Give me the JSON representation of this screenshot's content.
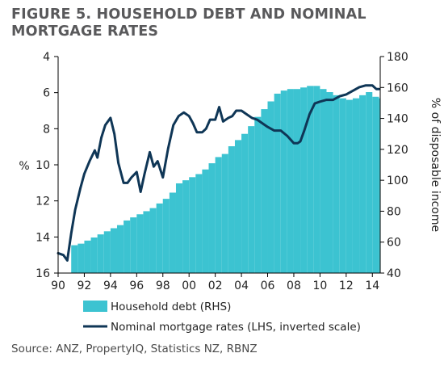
{
  "title": "FIGURE 5. HOUSEHOLD DEBT AND NOMINAL MORTGAGE RATES",
  "source": "Source: ANZ, PropertyIQ, Statistics NZ, RBNZ",
  "colors": {
    "area": "#3cc3d1",
    "line": "#0f3656",
    "axis": "#000000",
    "text": "#222222"
  },
  "chart_data": {
    "type": "area+line",
    "title": "FIGURE 5. HOUSEHOLD DEBT AND NOMINAL MORTGAGE RATES",
    "xlabel": "",
    "x_ticks": [
      90,
      92,
      94,
      96,
      98,
      0,
      2,
      4,
      6,
      8,
      10,
      12,
      14
    ],
    "x_tick_labels": [
      "90",
      "92",
      "94",
      "96",
      "98",
      "00",
      "02",
      "04",
      "06",
      "08",
      "10",
      "12",
      "14"
    ],
    "xlim": [
      1990,
      2014.6
    ],
    "left_axis": {
      "label": "%",
      "ticks": [
        "4",
        "6",
        "8",
        "10",
        "12",
        "14",
        "16"
      ],
      "lim": [
        4,
        16
      ],
      "inverted": true
    },
    "right_axis": {
      "label": "% of disposable income",
      "ticks": [
        "180",
        "160",
        "140",
        "120",
        "100",
        "80",
        "60",
        "40"
      ],
      "lim": [
        40,
        180
      ]
    },
    "legend": {
      "position": "bottom",
      "entries": [
        "Household debt (RHS)",
        "Nominal mortgage rates (LHS, inverted scale)"
      ]
    },
    "series": [
      {
        "name": "Household debt (RHS)",
        "type": "area",
        "axis": "right",
        "x": [
          1991.0,
          1991.5,
          1992.0,
          1992.5,
          1993.0,
          1993.5,
          1994.0,
          1994.5,
          1995.0,
          1995.5,
          1996.0,
          1996.5,
          1997.0,
          1997.5,
          1998.0,
          1998.5,
          1999.0,
          1999.5,
          2000.0,
          2000.5,
          2001.0,
          2001.5,
          2002.0,
          2002.5,
          2003.0,
          2003.5,
          2004.0,
          2004.5,
          2005.0,
          2005.5,
          2006.0,
          2006.5,
          2007.0,
          2007.5,
          2008.0,
          2008.5,
          2009.0,
          2009.5,
          2010.0,
          2010.5,
          2011.0,
          2011.5,
          2012.0,
          2012.5,
          2013.0,
          2013.5,
          2014.0,
          2014.5
        ],
        "values": [
          58,
          59,
          61,
          63,
          65,
          67,
          69,
          71,
          74,
          76,
          78,
          80,
          82,
          85,
          88,
          92,
          98,
          100,
          102,
          104,
          107,
          111,
          115,
          117,
          122,
          126,
          130,
          135,
          141,
          146,
          151,
          156,
          158,
          159,
          159,
          160,
          161,
          161,
          159,
          157,
          155,
          153,
          152,
          153,
          155,
          157,
          154,
          153
        ]
      },
      {
        "name": "Nominal mortgage rates (LHS, inverted scale)",
        "type": "line",
        "axis": "left",
        "x": [
          1990.0,
          1990.4,
          1990.7,
          1991.0,
          1991.3,
          1991.7,
          1992.0,
          1992.4,
          1992.8,
          1993.0,
          1993.3,
          1993.6,
          1994.0,
          1994.3,
          1994.6,
          1995.0,
          1995.3,
          1995.6,
          1996.0,
          1996.3,
          1996.6,
          1997.0,
          1997.3,
          1997.6,
          1998.0,
          1998.4,
          1998.8,
          1999.2,
          1999.6,
          2000.0,
          2000.3,
          2000.6,
          2001.0,
          2001.3,
          2001.6,
          2002.0,
          2002.3,
          2002.6,
          2003.0,
          2003.3,
          2003.6,
          2004.0,
          2004.4,
          2004.8,
          2005.2,
          2005.6,
          2006.0,
          2006.5,
          2007.0,
          2007.5,
          2008.0,
          2008.3,
          2008.5,
          2008.8,
          2009.2,
          2009.6,
          2010.0,
          2010.5,
          2011.0,
          2011.5,
          2012.0,
          2012.5,
          2013.0,
          2013.5,
          2014.0,
          2014.3,
          2014.5
        ],
        "values": [
          14.9,
          15.0,
          15.3,
          13.8,
          12.5,
          11.3,
          10.5,
          9.8,
          9.2,
          9.6,
          8.5,
          7.8,
          7.4,
          8.3,
          9.9,
          11.0,
          11.0,
          10.7,
          10.4,
          11.5,
          10.5,
          9.3,
          10.1,
          9.8,
          10.7,
          9.1,
          7.8,
          7.3,
          7.1,
          7.3,
          7.7,
          8.2,
          8.2,
          8.0,
          7.5,
          7.5,
          6.8,
          7.6,
          7.4,
          7.3,
          7.0,
          7.0,
          7.2,
          7.4,
          7.5,
          7.7,
          7.9,
          8.1,
          8.1,
          8.4,
          8.8,
          8.8,
          8.7,
          8.1,
          7.2,
          6.6,
          6.5,
          6.4,
          6.4,
          6.2,
          6.1,
          5.9,
          5.7,
          5.6,
          5.6,
          5.8,
          5.8
        ]
      }
    ]
  }
}
